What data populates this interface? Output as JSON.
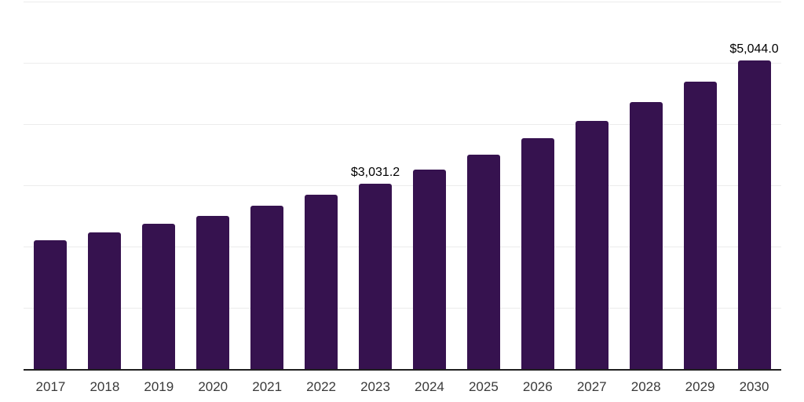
{
  "chart_data": {
    "type": "bar",
    "title": "",
    "xlabel": "",
    "ylabel": "",
    "categories": [
      "2017",
      "2018",
      "2019",
      "2020",
      "2021",
      "2022",
      "2023",
      "2024",
      "2025",
      "2026",
      "2027",
      "2028",
      "2029",
      "2030"
    ],
    "values": [
      2100,
      2230,
      2370,
      2505,
      2670,
      2850,
      3031.2,
      3260,
      3506,
      3770,
      4055,
      4361,
      4690,
      5044
    ],
    "point_labels": {
      "2023": "$3,031.2",
      "2030": "$5,044.0"
    },
    "ylim": [
      0,
      6000
    ],
    "grid_interval": 1000,
    "grid": true,
    "y_axis_tick_labels_shown": false,
    "legend_position": "none",
    "colors": {
      "bar": "#36124F",
      "axis_line": "#1f1f1f",
      "gridline": "#ececec",
      "x_tick_label": "#3a3a3a",
      "data_label": "#000000",
      "background": "#ffffff"
    }
  }
}
